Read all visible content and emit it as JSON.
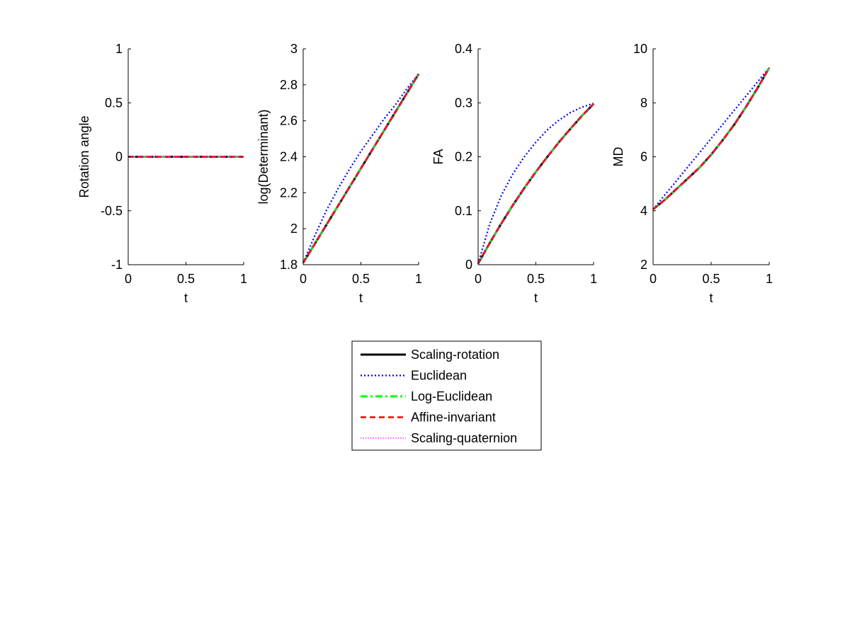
{
  "figure": {
    "background": "#ffffff",
    "legend": {
      "placement": "bottom-center",
      "entries": [
        {
          "label": "Scaling-rotation",
          "color": "#000000",
          "style": "solid"
        },
        {
          "label": "Euclidean",
          "color": "#0000ff",
          "style": "dotted"
        },
        {
          "label": "Log-Euclidean",
          "color": "#00ff00",
          "style": "dash-dot"
        },
        {
          "label": "Affine-invariant",
          "color": "#ff0000",
          "style": "dashed"
        },
        {
          "label": "Scaling-quaternion",
          "color": "#ff00ff",
          "style": "dotted-fine"
        }
      ]
    }
  },
  "chart_data": [
    {
      "type": "line",
      "xlabel": "t",
      "ylabel": "Rotation angle",
      "xlim": [
        0,
        1
      ],
      "ylim": [
        -1,
        1
      ],
      "xticks": [
        "0",
        "0.5",
        "1"
      ],
      "yticks": [
        "-1",
        "-0.5",
        "0",
        "0.5",
        "1"
      ],
      "grid": false,
      "x": [
        0,
        0.1,
        0.2,
        0.3,
        0.4,
        0.5,
        0.6,
        0.7,
        0.8,
        0.9,
        1.0
      ],
      "series": [
        {
          "name": "Scaling-rotation",
          "values": [
            0,
            0,
            0,
            0,
            0,
            0,
            0,
            0,
            0,
            0,
            0
          ]
        },
        {
          "name": "Euclidean",
          "values": [
            0,
            0,
            0,
            0,
            0,
            0,
            0,
            0,
            0,
            0,
            0
          ]
        },
        {
          "name": "Log-Euclidean",
          "values": [
            0,
            0,
            0,
            0,
            0,
            0,
            0,
            0,
            0,
            0,
            0
          ]
        },
        {
          "name": "Affine-invariant",
          "values": [
            0,
            0,
            0,
            0,
            0,
            0,
            0,
            0,
            0,
            0,
            0
          ]
        },
        {
          "name": "Scaling-quaternion",
          "values": [
            0,
            0,
            0,
            0,
            0,
            0,
            0,
            0,
            0,
            0,
            0
          ]
        }
      ]
    },
    {
      "type": "line",
      "xlabel": "t",
      "ylabel": "log(Determinant)",
      "xlim": [
        0,
        1
      ],
      "ylim": [
        1.8,
        3
      ],
      "xticks": [
        "0",
        "0.5",
        "1"
      ],
      "yticks": [
        "1.8",
        "2",
        "2.2",
        "2.4",
        "2.6",
        "2.8",
        "3"
      ],
      "grid": false,
      "x": [
        0,
        0.1,
        0.2,
        0.3,
        0.4,
        0.5,
        0.6,
        0.7,
        0.8,
        0.9,
        1.0
      ],
      "series": [
        {
          "name": "Scaling-rotation",
          "values": [
            1.81,
            1.915,
            2.02,
            2.125,
            2.23,
            2.335,
            2.44,
            2.545,
            2.65,
            2.755,
            2.86
          ]
        },
        {
          "name": "Euclidean",
          "values": [
            1.81,
            1.96,
            2.1,
            2.22,
            2.33,
            2.43,
            2.52,
            2.61,
            2.69,
            2.78,
            2.86
          ]
        },
        {
          "name": "Log-Euclidean",
          "values": [
            1.81,
            1.915,
            2.02,
            2.125,
            2.23,
            2.335,
            2.44,
            2.545,
            2.65,
            2.755,
            2.86
          ]
        },
        {
          "name": "Affine-invariant",
          "values": [
            1.81,
            1.915,
            2.02,
            2.125,
            2.23,
            2.335,
            2.44,
            2.545,
            2.65,
            2.755,
            2.86
          ]
        },
        {
          "name": "Scaling-quaternion",
          "values": [
            1.81,
            1.915,
            2.02,
            2.125,
            2.23,
            2.335,
            2.44,
            2.545,
            2.65,
            2.755,
            2.86
          ]
        }
      ]
    },
    {
      "type": "line",
      "xlabel": "t",
      "ylabel": "FA",
      "xlim": [
        0,
        1
      ],
      "ylim": [
        0,
        0.4
      ],
      "xticks": [
        "0",
        "0.5",
        "1"
      ],
      "yticks": [
        "0",
        "0.1",
        "0.2",
        "0.3",
        "0.4"
      ],
      "grid": false,
      "x": [
        0,
        0.1,
        0.2,
        0.3,
        0.4,
        0.5,
        0.6,
        0.7,
        0.8,
        0.9,
        1.0
      ],
      "series": [
        {
          "name": "Scaling-rotation",
          "values": [
            0.002,
            0.04,
            0.076,
            0.11,
            0.142,
            0.172,
            0.2,
            0.227,
            0.252,
            0.276,
            0.298
          ]
        },
        {
          "name": "Euclidean",
          "values": [
            0.002,
            0.075,
            0.128,
            0.168,
            0.2,
            0.227,
            0.25,
            0.268,
            0.282,
            0.292,
            0.299
          ]
        },
        {
          "name": "Log-Euclidean",
          "values": [
            0.002,
            0.04,
            0.076,
            0.11,
            0.142,
            0.172,
            0.2,
            0.227,
            0.252,
            0.276,
            0.298
          ]
        },
        {
          "name": "Affine-invariant",
          "values": [
            0.002,
            0.04,
            0.076,
            0.11,
            0.142,
            0.172,
            0.2,
            0.227,
            0.252,
            0.276,
            0.298
          ]
        },
        {
          "name": "Scaling-quaternion",
          "values": [
            0.002,
            0.04,
            0.076,
            0.11,
            0.142,
            0.172,
            0.2,
            0.227,
            0.252,
            0.276,
            0.298
          ]
        }
      ]
    },
    {
      "type": "line",
      "xlabel": "t",
      "ylabel": "MD",
      "xlim": [
        0,
        1
      ],
      "ylim": [
        2,
        10
      ],
      "xticks": [
        "0",
        "0.5",
        "1"
      ],
      "yticks": [
        "2",
        "4",
        "6",
        "8",
        "10"
      ],
      "grid": false,
      "x": [
        0,
        0.1,
        0.2,
        0.3,
        0.4,
        0.5,
        0.6,
        0.7,
        0.8,
        0.9,
        1.0
      ],
      "series": [
        {
          "name": "Scaling-rotation",
          "values": [
            4.05,
            4.4,
            4.8,
            5.2,
            5.6,
            6.08,
            6.62,
            7.2,
            7.85,
            8.55,
            9.3
          ]
        },
        {
          "name": "Euclidean",
          "values": [
            4.05,
            4.58,
            5.1,
            5.63,
            6.15,
            6.68,
            7.2,
            7.73,
            8.25,
            8.78,
            9.3
          ]
        },
        {
          "name": "Log-Euclidean",
          "values": [
            4.05,
            4.4,
            4.8,
            5.2,
            5.6,
            6.08,
            6.62,
            7.2,
            7.85,
            8.55,
            9.3
          ]
        },
        {
          "name": "Affine-invariant",
          "values": [
            4.05,
            4.4,
            4.8,
            5.2,
            5.6,
            6.08,
            6.62,
            7.2,
            7.85,
            8.55,
            9.3
          ]
        },
        {
          "name": "Scaling-quaternion",
          "values": [
            4.05,
            4.4,
            4.8,
            5.2,
            5.6,
            6.08,
            6.62,
            7.2,
            7.85,
            8.55,
            9.3
          ]
        }
      ]
    }
  ]
}
